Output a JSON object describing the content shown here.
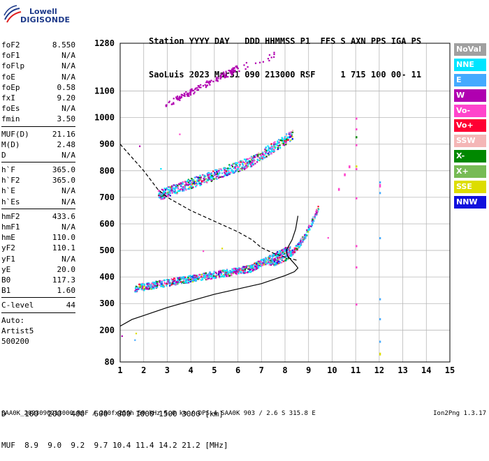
{
  "logo": {
    "line1": "Lowell",
    "line2": "DIGISONDE"
  },
  "header": {
    "row1": "Station YYYY DAY   DDD HHMMSS P1  FFS S AXN PPS IGA PS",
    "row2": "SaoLuis 2023 Mar31 090 213000 RSF     1 715 100 00- 11"
  },
  "params": [
    {
      "label": "foF2",
      "value": "8.550"
    },
    {
      "label": "foF1",
      "value": "N/A"
    },
    {
      "label": "foFlp",
      "value": "N/A"
    },
    {
      "label": "foE",
      "value": "N/A"
    },
    {
      "label": "foEp",
      "value": "0.58"
    },
    {
      "label": "fxI",
      "value": "9.20"
    },
    {
      "label": "foEs",
      "value": "N/A"
    },
    {
      "label": "fmin",
      "value": "3.50"
    },
    {
      "sep": true
    },
    {
      "label": "MUF(D)",
      "value": "21.16"
    },
    {
      "label": "M(D)",
      "value": "2.48"
    },
    {
      "label": "D",
      "value": "N/A"
    },
    {
      "sep": true
    },
    {
      "label": "h`F",
      "value": "365.0"
    },
    {
      "label": "h`F2",
      "value": "365.0"
    },
    {
      "label": "h`E",
      "value": "N/A"
    },
    {
      "label": "h`Es",
      "value": "N/A"
    },
    {
      "sep": true
    },
    {
      "label": "hmF2",
      "value": "433.6"
    },
    {
      "label": "hmF1",
      "value": "N/A"
    },
    {
      "label": "hmE",
      "value": "110.0"
    },
    {
      "label": "yF2",
      "value": "110.1"
    },
    {
      "label": "yF1",
      "value": "N/A"
    },
    {
      "label": "yE",
      "value": "20.0"
    },
    {
      "label": "B0",
      "value": "117.3"
    },
    {
      "label": "B1",
      "value": "1.60"
    },
    {
      "sep": true
    },
    {
      "label": "C-level",
      "value": "44"
    },
    {
      "sep": true
    },
    {
      "text": "Auto:"
    },
    {
      "text": "Artist5"
    },
    {
      "text": "500200"
    }
  ],
  "legend": [
    {
      "label": "NoVal",
      "color": "#a0a0a0"
    },
    {
      "label": "NNE",
      "color": "#00e5ff"
    },
    {
      "label": "E",
      "color": "#44aaff"
    },
    {
      "label": "W",
      "color": "#b000b0"
    },
    {
      "label": "Vo-",
      "color": "#ff44cc"
    },
    {
      "label": "Vo+",
      "color": "#ff0033"
    },
    {
      "label": "SSW",
      "color": "#f4b6b6"
    },
    {
      "label": "X-",
      "color": "#008800"
    },
    {
      "label": "X+",
      "color": "#77bb55"
    },
    {
      "label": "SSE",
      "color": "#dddd00"
    },
    {
      "label": "NNW",
      "color": "#1010dd"
    }
  ],
  "mufTable": {
    "row1": "D    100  200  400  600  800 1000 1500 3000 [km]",
    "row2": "MUF  8.9  9.0  9.2  9.7 10.4 11.4 14.2 21.2 [MHz]"
  },
  "footer": "SAA0K_2023090213000.RSF / 280fx256h 50 kHz 5.0 km / DPS-4 SAA0K 903 / 2.6 S 315.8 E",
  "version": "Ion2Png 1.3.17",
  "chart_data": {
    "type": "scatter",
    "xlim": [
      1,
      15
    ],
    "ylim": [
      80,
      1280
    ],
    "x_ticks": [
      1,
      2,
      3,
      4,
      5,
      6,
      7,
      8,
      9,
      10,
      11,
      12,
      13,
      14,
      15
    ],
    "y_ticks": [
      80,
      200,
      300,
      400,
      500,
      600,
      700,
      800,
      900,
      1000,
      1100,
      1280
    ],
    "grid": true,
    "lines": [
      {
        "name": "profile",
        "style": "solid",
        "points": [
          [
            1.0,
            215
          ],
          [
            1.5,
            240
          ],
          [
            2.0,
            255
          ],
          [
            3.0,
            285
          ],
          [
            4.0,
            310
          ],
          [
            5.0,
            335
          ],
          [
            6.0,
            355
          ],
          [
            7.0,
            375
          ],
          [
            7.5,
            390
          ],
          [
            8.0,
            405
          ],
          [
            8.4,
            420
          ],
          [
            8.55,
            433.6
          ],
          [
            8.45,
            445
          ],
          [
            8.3,
            460
          ],
          [
            8.1,
            480
          ],
          [
            8.05,
            500
          ]
        ]
      },
      {
        "name": "profile-extension",
        "style": "solid",
        "points": [
          [
            8.05,
            500
          ],
          [
            8.3,
            540
          ],
          [
            8.45,
            580
          ],
          [
            8.55,
            630
          ]
        ]
      },
      {
        "name": "muf-curve",
        "style": "dashed",
        "points": [
          [
            1.0,
            900
          ],
          [
            1.5,
            850
          ],
          [
            2.0,
            800
          ],
          [
            2.6,
            730
          ],
          [
            3.0,
            700
          ],
          [
            4.0,
            650
          ],
          [
            5.0,
            610
          ],
          [
            6.0,
            570
          ],
          [
            6.6,
            540
          ],
          [
            7.0,
            510
          ],
          [
            7.5,
            490
          ],
          [
            8.0,
            475
          ],
          [
            8.5,
            463
          ]
        ]
      }
    ],
    "scatter_bands": [
      {
        "trace": "F2 1-hop O",
        "x": [
          1.6,
          8.2
        ],
        "y": [
          355,
          470
        ],
        "color": "mixed"
      },
      {
        "trace": "F2 1-hop X",
        "x": [
          7.5,
          9.4
        ],
        "y": [
          450,
          650
        ],
        "color": "mixed"
      },
      {
        "trace": "F2 2-hop",
        "x": [
          2.6,
          8.3
        ],
        "y": [
          700,
          980
        ],
        "color": "mixed"
      },
      {
        "trace": "F2 3-hop",
        "x": [
          2.9,
          6.0
        ],
        "y": [
          1050,
          1220
        ],
        "color": "#b000b0"
      }
    ],
    "vertical_points": [
      {
        "x": 11.0,
        "y": [
          1000,
          960,
          900,
          810,
          700,
          520,
          440,
          300
        ]
      },
      {
        "x": 12.0,
        "y": [
          760,
          720,
          550,
          320,
          245,
          160
        ]
      }
    ]
  }
}
